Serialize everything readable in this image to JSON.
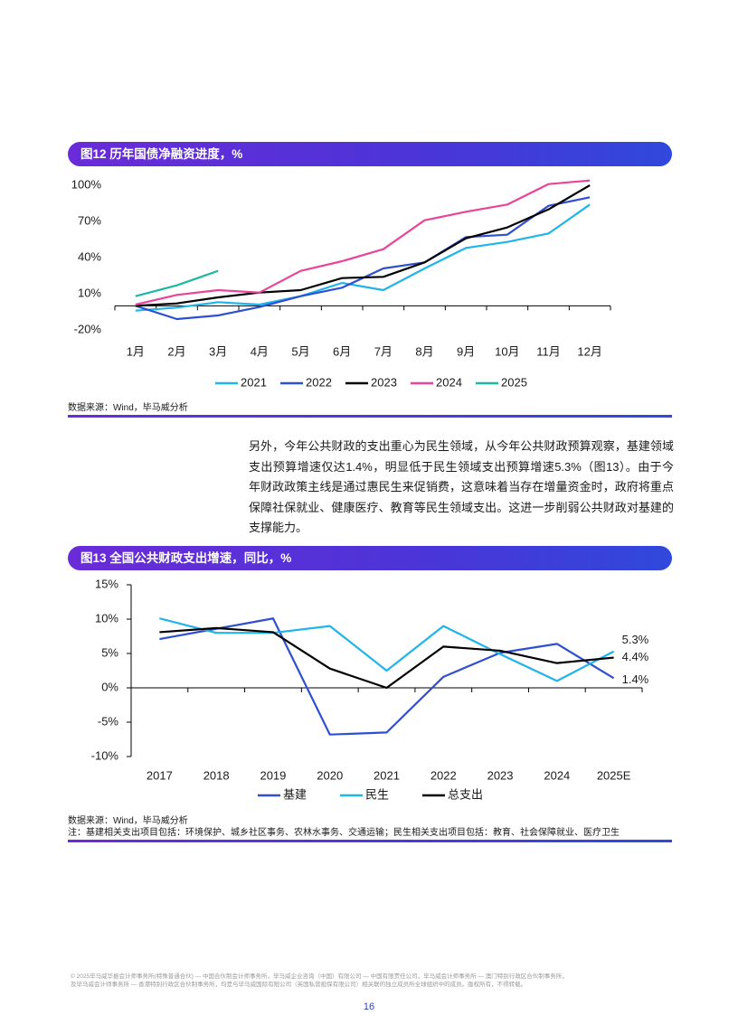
{
  "chart_data": [
    {
      "type": "line",
      "title": "图12 历年国债净融资进度，%",
      "categories": [
        "1月",
        "2月",
        "3月",
        "4月",
        "5月",
        "6月",
        "7月",
        "8月",
        "9月",
        "10月",
        "11月",
        "12月"
      ],
      "series": [
        {
          "name": "2021",
          "color": "#1fb4ea",
          "values": [
            -4,
            -1.5,
            3,
            1,
            8,
            19,
            13,
            31,
            48,
            53,
            60,
            84
          ]
        },
        {
          "name": "2022",
          "color": "#2f4fd1",
          "values": [
            0,
            -11,
            -8,
            -1,
            8,
            15,
            31,
            36,
            57,
            59,
            83,
            90
          ]
        },
        {
          "name": "2023",
          "color": "#000000",
          "values": [
            0,
            2,
            7,
            11,
            13,
            23,
            24,
            36,
            56,
            65,
            80,
            100
          ]
        },
        {
          "name": "2024",
          "color": "#e8449a",
          "values": [
            1,
            9,
            13,
            11,
            29,
            37,
            47,
            71,
            78,
            84,
            101,
            104
          ]
        },
        {
          "name": "2025",
          "color": "#1db7a3",
          "values": [
            8,
            17,
            29,
            null,
            null,
            null,
            null,
            null,
            null,
            null,
            null,
            null
          ]
        }
      ],
      "ylim": [
        -20,
        100
      ],
      "yticks": [
        {
          "value": -20,
          "label": "-20%"
        },
        {
          "value": 10,
          "label": "10%"
        },
        {
          "value": 40,
          "label": "40%"
        },
        {
          "value": 70,
          "label": "70%"
        },
        {
          "value": 100,
          "label": "100%"
        }
      ],
      "grid": false,
      "source": "数据来源：Wind，毕马威分析"
    },
    {
      "type": "line",
      "title": "图13 全国公共财政支出增速，同比，%",
      "categories": [
        "2017",
        "2018",
        "2019",
        "2020",
        "2021",
        "2022",
        "2023",
        "2024",
        "2025E"
      ],
      "series": [
        {
          "name": "基建",
          "color": "#2f4fd1",
          "values": [
            7.1,
            8.6,
            10.1,
            -6.8,
            -6.5,
            1.6,
            5.1,
            6.4,
            1.4
          ],
          "value_labels": [
            null,
            null,
            null,
            null,
            null,
            null,
            null,
            null,
            "1.4%"
          ]
        },
        {
          "name": "民生",
          "color": "#1fb4ea",
          "values": [
            10.1,
            8.0,
            8.0,
            9.0,
            2.5,
            9.0,
            4.9,
            1.0,
            5.3
          ],
          "value_labels": [
            null,
            null,
            null,
            null,
            null,
            null,
            null,
            null,
            "5.3%"
          ]
        },
        {
          "name": "总支出",
          "color": "#000000",
          "values": [
            8.1,
            8.7,
            8.1,
            2.8,
            0,
            6.0,
            5.4,
            3.6,
            4.4
          ],
          "value_labels": [
            null,
            null,
            null,
            null,
            null,
            null,
            null,
            null,
            "4.4%"
          ]
        }
      ],
      "ylim": [
        -10,
        15
      ],
      "yticks": [
        {
          "value": -10,
          "label": "-10%"
        },
        {
          "value": -5,
          "label": "-5%"
        },
        {
          "value": 0,
          "label": "0%"
        },
        {
          "value": 5,
          "label": "5%"
        },
        {
          "value": 10,
          "label": "10%"
        },
        {
          "value": 15,
          "label": "15%"
        }
      ],
      "grid": false,
      "source": "数据来源：Wind，毕马威分析",
      "note": "注：基建相关支出项目包括：环境保护、城乡社区事务、农林水事务、交通运输；民生相关支出项目包括：教育、社会保障就业、医疗卫生"
    }
  ],
  "paragraph": "另外，今年公共财政的支出重心为民生领域，从今年公共财政预算观察，基建领域支出预算增速仅达1.4%，明显低于民生领域支出预算增速5.3%（图13）。由于今年财政政策主线是通过惠民生来促销费，这意味着当存在增量资金时，政府将重点保障社保就业、健康医疗、教育等民生领域支出。这进一步削弱公共财政对基建的支撑能力。",
  "footer": {
    "copyright": [
      "© 2025毕马威华振会计师事务所(特殊普通合伙) — 中国合伙制会计师事务所，毕马威企业咨询（中国）有限公司 — 中国有限责任公司，毕马威会计师事务所 — 澳门特别行政区合伙制事务所，",
      "及毕马威会计师事务所 — 香港特别行政区合伙制事务所，均是与毕马威国际有限公司（英国私营担保有限公司）相关联的独立成员所全球组织中的成员。版权所有，不得转载。"
    ],
    "page_number": "16"
  }
}
